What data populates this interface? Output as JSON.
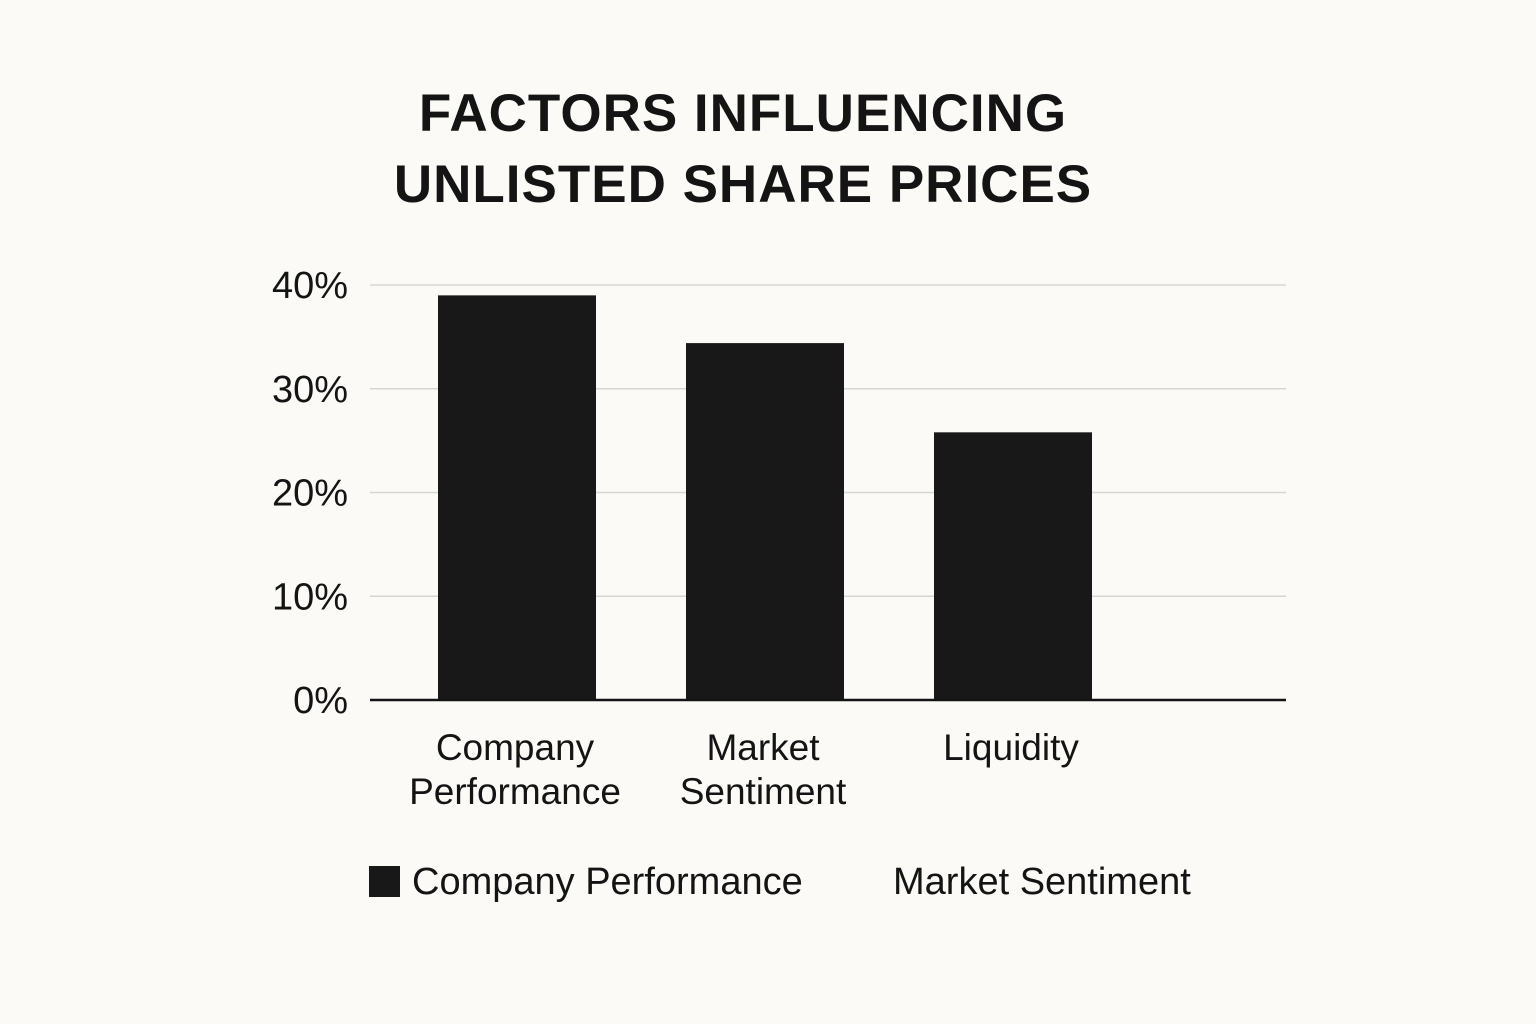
{
  "chart_data": {
    "type": "bar",
    "title": [
      "FACTORS INFLUENCING",
      "UNLISTED SHARE PRICES"
    ],
    "categories": [
      [
        "Company",
        "Performance"
      ],
      [
        "Market",
        "Sentiment"
      ],
      [
        "Liquidity"
      ]
    ],
    "values": [
      39,
      34.4,
      25.8
    ],
    "ylim": [
      0,
      40
    ],
    "yticks": [
      0,
      10,
      20,
      30,
      40
    ],
    "ytick_labels": [
      "0%",
      "10%",
      "20%",
      "30%",
      "40%"
    ],
    "grid": true,
    "bar_color": "#181818",
    "grid_color": "#d6d6d2",
    "legend": {
      "placement": "bottom",
      "entries": [
        {
          "label": "Company Performance",
          "has_swatch": true
        },
        {
          "label": "Market Sentiment",
          "has_swatch": false
        }
      ]
    }
  }
}
